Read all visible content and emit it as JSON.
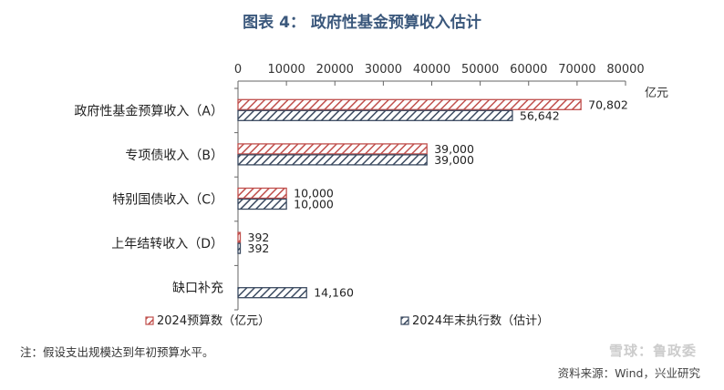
{
  "title": "图表 4： 政府性基金预算收入估计",
  "note": "注：假设支出规模达到年初预算水平。",
  "source": "资料来源：Wind，兴业研究",
  "watermark": "雪球：鲁政委",
  "colors": {
    "title": "#3b587c",
    "series_budget": "#c0504d",
    "series_actual": "#3b4a60",
    "axis": "#666666"
  },
  "chart_data": {
    "type": "bar",
    "orientation": "horizontal",
    "x_unit_label": "亿元",
    "xlim": [
      0,
      80000
    ],
    "x_ticks": [
      "0",
      "10000",
      "20000",
      "30000",
      "40000",
      "50000",
      "60000",
      "70000",
      "80000"
    ],
    "x_tick_values": [
      0,
      10000,
      20000,
      30000,
      40000,
      50000,
      60000,
      70000,
      80000
    ],
    "categories": [
      "政府性基金预算收入（A）",
      "专项债收入（B）",
      "特别国债收入（C）",
      "上年结转收入（D）",
      "缺口补充"
    ],
    "series": [
      {
        "name": "2024预算数（亿元）",
        "color": "#c0504d",
        "values": [
          70802,
          39000,
          10000,
          392,
          null
        ],
        "labels": [
          "70,802",
          "39,000",
          "10,000",
          "392",
          ""
        ]
      },
      {
        "name": "2024年末执行数（估计）",
        "color": "#3b4a60",
        "values": [
          56642,
          39000,
          10000,
          392,
          14160
        ],
        "labels": [
          "56,642",
          "39,000",
          "10,000",
          "392",
          "14,160"
        ]
      }
    ],
    "legend_position": "bottom",
    "grid": false
  }
}
